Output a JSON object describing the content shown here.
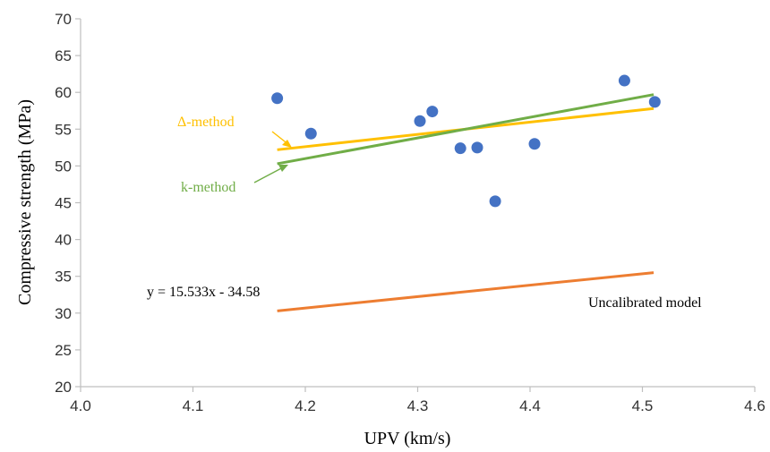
{
  "chart_data": {
    "type": "scatter",
    "xlabel": "UPV (km/s)",
    "ylabel": "Compressive strength (MPa)",
    "xlim": [
      4.0,
      4.6
    ],
    "ylim": [
      20,
      70
    ],
    "x_ticks": [
      4.0,
      4.1,
      4.2,
      4.3,
      4.4,
      4.5,
      4.6
    ],
    "x_tick_labels": [
      "4.0",
      "4.1",
      "4.2",
      "4.3",
      "4.4",
      "4.5",
      "4.6"
    ],
    "y_ticks": [
      20,
      25,
      30,
      35,
      40,
      45,
      50,
      55,
      60,
      65,
      70
    ],
    "grid": false,
    "points": {
      "color": "#4472C4",
      "x": [
        4.175,
        4.205,
        4.302,
        4.313,
        4.338,
        4.353,
        4.369,
        4.404,
        4.484,
        4.511
      ],
      "y": [
        59.2,
        54.4,
        56.1,
        57.4,
        52.4,
        52.5,
        45.2,
        53.0,
        61.6,
        58.7
      ]
    },
    "lines": [
      {
        "id": "delta-method",
        "label": "Δ-method",
        "color": "#FFC000",
        "x": [
          4.175,
          4.51
        ],
        "y": [
          52.2,
          57.8
        ]
      },
      {
        "id": "k-method",
        "label": "k-method",
        "color": "#70AD47",
        "x": [
          4.175,
          4.51
        ],
        "y": [
          50.3,
          59.7
        ]
      },
      {
        "id": "uncalibrated",
        "label": "Uncalibrated model",
        "color": "#ED7D31",
        "x": [
          4.175,
          4.51
        ],
        "y": [
          30.3,
          35.5
        ]
      }
    ],
    "annotations": {
      "equation": "y = 15.533x - 34.58",
      "delta_label": "Δ-method",
      "k_label": "k-method",
      "uncalibrated_label": "Uncalibrated model"
    }
  }
}
